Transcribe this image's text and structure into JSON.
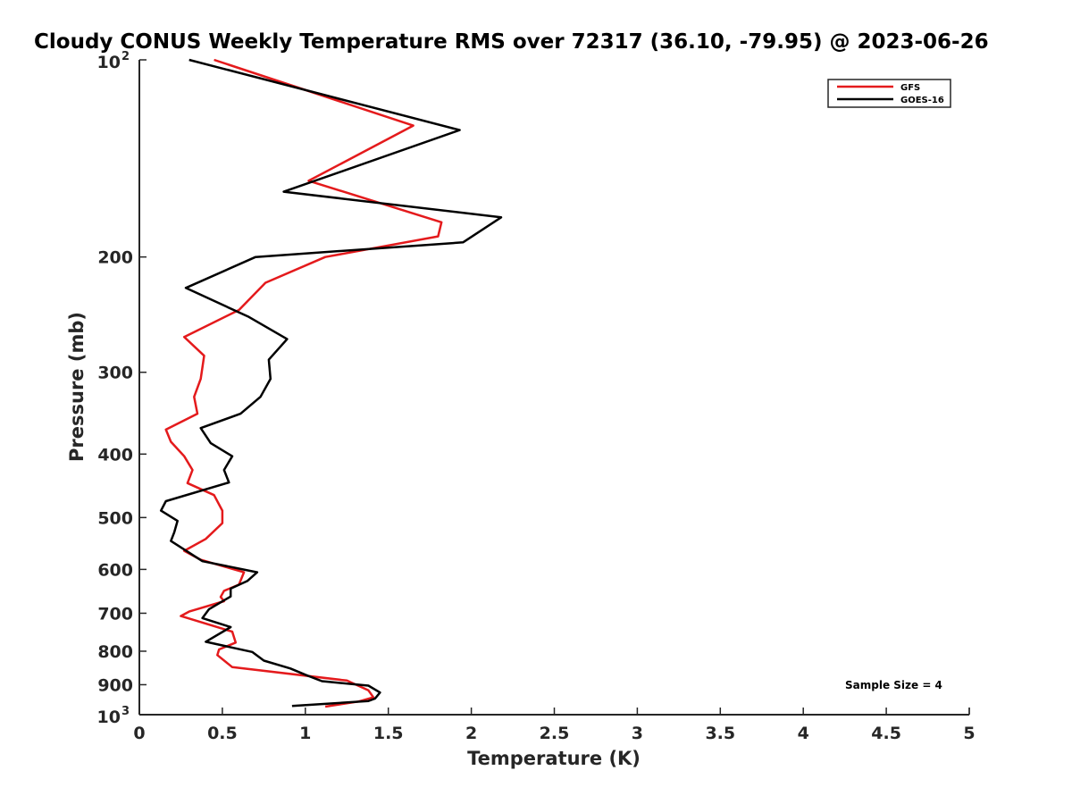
{
  "chart_data": {
    "type": "line",
    "title": "Cloudy CONUS Weekly Temperature RMS over 72317 (36.10, -79.95) @ 2023-06-26",
    "xlabel": "Temperature (K)",
    "ylabel": "Pressure (mb)",
    "xlim": [
      0,
      5
    ],
    "ylim": [
      100,
      1000
    ],
    "yscale": "log",
    "y_reversed": true,
    "grid": false,
    "legend_position": "top-right",
    "x_ticks": [
      0,
      0.5,
      1,
      1.5,
      2,
      2.5,
      3,
      3.5,
      4,
      4.5,
      5
    ],
    "x_tick_labels": [
      "0",
      "0.5",
      "1",
      "1.5",
      "2",
      "2.5",
      "3",
      "3.5",
      "4",
      "4.5",
      "5"
    ],
    "y_ticks": [
      200,
      300,
      400,
      500,
      600,
      700,
      800,
      900
    ],
    "y_tick_labels": [
      "200",
      "300",
      "400",
      "500",
      "600",
      "700",
      "800",
      "900"
    ],
    "y_min_label": {
      "base": "10",
      "exp": "2"
    },
    "y_max_label": {
      "base": "10",
      "exp": "3"
    },
    "annotation": "Sample Size = 4",
    "series": [
      {
        "name": "GFS",
        "color": "#e41a1c",
        "points": [
          [
            0.45,
            100
          ],
          [
            1.65,
            126
          ],
          [
            1.02,
            153
          ],
          [
            1.82,
            177
          ],
          [
            1.8,
            186
          ],
          [
            1.12,
            200
          ],
          [
            0.76,
            219
          ],
          [
            0.6,
            241
          ],
          [
            0.27,
            265
          ],
          [
            0.39,
            283
          ],
          [
            0.37,
            307
          ],
          [
            0.33,
            327
          ],
          [
            0.35,
            347
          ],
          [
            0.16,
            367
          ],
          [
            0.19,
            383
          ],
          [
            0.27,
            403
          ],
          [
            0.32,
            423
          ],
          [
            0.29,
            443
          ],
          [
            0.45,
            462
          ],
          [
            0.5,
            488
          ],
          [
            0.5,
            510
          ],
          [
            0.4,
            539
          ],
          [
            0.27,
            562
          ],
          [
            0.37,
            580
          ],
          [
            0.63,
            606
          ],
          [
            0.6,
            633
          ],
          [
            0.51,
            647
          ],
          [
            0.49,
            661
          ],
          [
            0.51,
            671
          ],
          [
            0.3,
            696
          ],
          [
            0.25,
            707
          ],
          [
            0.56,
            747
          ],
          [
            0.58,
            776
          ],
          [
            0.48,
            795
          ],
          [
            0.47,
            811
          ],
          [
            0.56,
            846
          ],
          [
            1.25,
            887
          ],
          [
            1.38,
            918
          ],
          [
            1.41,
            941
          ],
          [
            1.32,
            955
          ],
          [
            1.12,
            972
          ]
        ]
      },
      {
        "name": "GOES-16",
        "color": "#000000",
        "points": [
          [
            0.3,
            100
          ],
          [
            1.93,
            128
          ],
          [
            0.87,
            159
          ],
          [
            2.18,
            174
          ],
          [
            1.95,
            190
          ],
          [
            0.7,
            200
          ],
          [
            0.28,
            223
          ],
          [
            0.66,
            247
          ],
          [
            0.89,
            267
          ],
          [
            0.78,
            287
          ],
          [
            0.79,
            307
          ],
          [
            0.73,
            327
          ],
          [
            0.61,
            347
          ],
          [
            0.37,
            365
          ],
          [
            0.43,
            385
          ],
          [
            0.56,
            403
          ],
          [
            0.51,
            423
          ],
          [
            0.54,
            442
          ],
          [
            0.16,
            472
          ],
          [
            0.13,
            488
          ],
          [
            0.23,
            506
          ],
          [
            0.21,
            527
          ],
          [
            0.19,
            543
          ],
          [
            0.38,
            583
          ],
          [
            0.71,
            606
          ],
          [
            0.65,
            625
          ],
          [
            0.55,
            642
          ],
          [
            0.55,
            660
          ],
          [
            0.42,
            690
          ],
          [
            0.38,
            712
          ],
          [
            0.55,
            735
          ],
          [
            0.4,
            774
          ],
          [
            0.68,
            802
          ],
          [
            0.75,
            827
          ],
          [
            0.91,
            850
          ],
          [
            1.0,
            869
          ],
          [
            1.1,
            889
          ],
          [
            1.38,
            903
          ],
          [
            1.45,
            925
          ],
          [
            1.42,
            945
          ],
          [
            1.38,
            953
          ],
          [
            0.92,
            970
          ]
        ]
      }
    ]
  }
}
